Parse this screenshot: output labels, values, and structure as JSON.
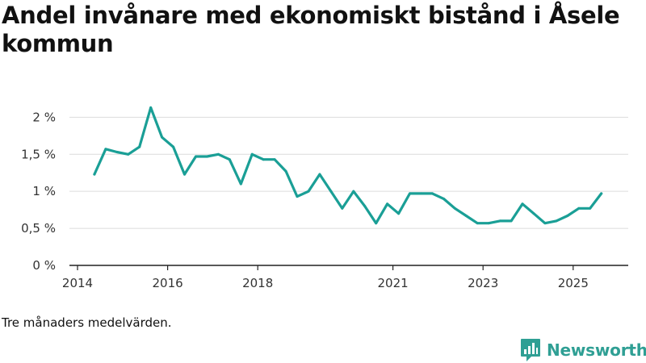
{
  "chart_data": {
    "type": "line",
    "title": "Andel invånare med ekonomiskt bistånd i Åsele kommun",
    "caption": "Tre månaders medelvärden.",
    "xlabel": "",
    "ylabel": "",
    "x_ticks": [
      {
        "label": "2014",
        "t": 0
      },
      {
        "label": "2016",
        "t": 8
      },
      {
        "label": "2018",
        "t": 16
      },
      {
        "label": "2021",
        "t": 28
      },
      {
        "label": "2023",
        "t": 36
      },
      {
        "label": "2025",
        "t": 44
      }
    ],
    "y_ticks": [
      {
        "label": "0 %",
        "value": 0
      },
      {
        "label": "0,5 %",
        "value": 0.5
      },
      {
        "label": "1 %",
        "value": 1
      },
      {
        "label": "1,5 %",
        "value": 1.5
      },
      {
        "label": "2 %",
        "value": 2
      }
    ],
    "xlim": [
      0,
      49
    ],
    "ylim": [
      0,
      2.2
    ],
    "series": [
      {
        "name": "Andel invånare med ekonomiskt bistånd",
        "color": "#1a9f96",
        "t": [
          1.5,
          2.5,
          3.5,
          4.5,
          5.5,
          6.5,
          7.5,
          8.5,
          9.5,
          10.5,
          11.5,
          12.5,
          13.5,
          14.5,
          15.5,
          16.5,
          17.5,
          18.5,
          19.5,
          20.5,
          21.5,
          22.5,
          23.5,
          24.5,
          25.5,
          26.5,
          27.5,
          28.5,
          29.5,
          30.5,
          31.5,
          32.5,
          33.5,
          34.5,
          35.5,
          36.5,
          37.5,
          38.5,
          39.5,
          40.5,
          41.5,
          42.5,
          43.5,
          44.5,
          45.5,
          46.5
        ],
        "values": [
          1.23,
          1.57,
          1.53,
          1.5,
          1.6,
          2.13,
          1.73,
          1.6,
          1.23,
          1.47,
          1.47,
          1.5,
          1.43,
          1.1,
          1.5,
          1.43,
          1.43,
          1.27,
          0.93,
          1.0,
          1.23,
          1.0,
          0.77,
          1.0,
          0.8,
          0.57,
          0.83,
          0.7,
          0.97,
          0.97,
          0.97,
          0.9,
          0.77,
          0.67,
          0.57,
          0.57,
          0.6,
          0.6,
          0.83,
          0.7,
          0.57,
          0.6,
          0.67,
          0.77,
          0.77,
          0.97
        ]
      }
    ],
    "grid": true,
    "legend": "none"
  },
  "brand": {
    "name": "Newsworthy",
    "icon": "newsworthy-logo-icon",
    "color": "#2f9f94"
  }
}
